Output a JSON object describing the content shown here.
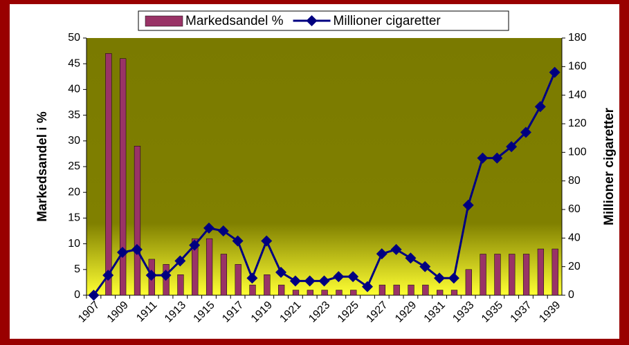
{
  "chart_data": {
    "type": "bar_line",
    "categories": [
      "1907",
      null,
      "1909",
      null,
      "1911",
      null,
      "1913",
      null,
      "1915",
      null,
      "1917",
      null,
      "1919",
      null,
      "1921",
      null,
      "1923",
      null,
      "1925",
      null,
      "1927",
      null,
      "1929",
      null,
      "1931",
      null,
      "1933",
      null,
      "1935",
      null,
      "1937",
      null,
      "1939"
    ],
    "series": [
      {
        "name": "Markedsandel %",
        "type": "bar",
        "color": "#993366",
        "values": [
          0,
          47,
          46,
          29,
          7,
          6,
          4,
          11,
          11,
          8,
          6,
          2,
          4,
          2,
          1,
          1,
          1,
          1,
          1,
          0,
          2,
          2,
          2,
          2,
          1,
          1,
          5,
          8,
          8,
          8,
          8,
          9,
          9
        ]
      },
      {
        "name": "Millioner cigaretter",
        "type": "line",
        "axis": "y2",
        "color": "#000080",
        "values": [
          0,
          14,
          30,
          32,
          14,
          14,
          24,
          35,
          47,
          45,
          38,
          12,
          38,
          16,
          10,
          10,
          10,
          13,
          13,
          6,
          29,
          32,
          26,
          20,
          12,
          12,
          63,
          96,
          96,
          104,
          114,
          132,
          156
        ]
      }
    ],
    "y_label": "Markedsandel i %",
    "y2_label": "Millioner cigaretter",
    "ylim": [
      0,
      50
    ],
    "yticks": [
      0,
      5,
      10,
      15,
      20,
      25,
      30,
      35,
      40,
      45,
      50
    ],
    "y2lim": [
      0,
      180
    ],
    "y2ticks": [
      0,
      20,
      40,
      60,
      80,
      100,
      120,
      140,
      160,
      180
    ],
    "legend": "top"
  }
}
